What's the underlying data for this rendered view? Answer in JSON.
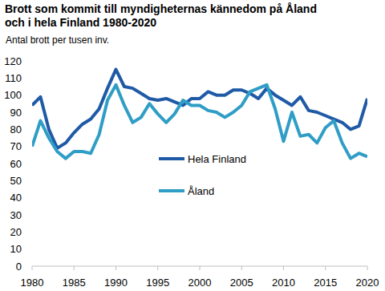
{
  "chart_data": {
    "type": "line",
    "title": "Brott som kommit till myndigheternas kännedom på Åland och i hela Finland 1980-2020",
    "subtitle": "Antal brott per tusen inv.",
    "x": [
      1980,
      1981,
      1982,
      1983,
      1984,
      1985,
      1986,
      1987,
      1988,
      1989,
      1990,
      1991,
      1992,
      1993,
      1994,
      1995,
      1996,
      1997,
      1998,
      1999,
      2000,
      2001,
      2002,
      2003,
      2004,
      2005,
      2006,
      2007,
      2008,
      2009,
      2010,
      2011,
      2012,
      2013,
      2014,
      2015,
      2016,
      2017,
      2018,
      2019,
      2020
    ],
    "series": [
      {
        "name": "Hela Finland",
        "color": "#1f5aa6",
        "values": [
          94,
          99,
          80,
          69,
          72,
          78,
          83,
          86,
          92,
          104,
          115,
          105,
          104,
          101,
          98,
          97,
          98,
          96,
          94,
          98,
          98,
          102,
          100,
          100,
          103,
          103,
          101,
          98,
          104,
          100,
          97,
          94,
          99,
          91,
          90,
          88,
          86,
          84,
          80,
          82,
          98
        ]
      },
      {
        "name": "Åland",
        "color": "#2f9dc5",
        "values": [
          70,
          85,
          75,
          67,
          63,
          67,
          67,
          66,
          77,
          97,
          106,
          94,
          84,
          87,
          95,
          89,
          84,
          89,
          97,
          94,
          94,
          91,
          90,
          87,
          90,
          94,
          102,
          104,
          106,
          92,
          73,
          90,
          76,
          77,
          72,
          81,
          85,
          72,
          63,
          66,
          64
        ]
      }
    ],
    "xlim": [
      1980,
      2020
    ],
    "xticks": [
      1980,
      1985,
      1990,
      1995,
      2000,
      2005,
      2010,
      2015,
      2020
    ],
    "ylim": [
      0,
      120
    ],
    "yticks": [
      0,
      10,
      20,
      30,
      40,
      50,
      60,
      70,
      80,
      90,
      100,
      110,
      120
    ],
    "grid": false,
    "legend": "center"
  }
}
